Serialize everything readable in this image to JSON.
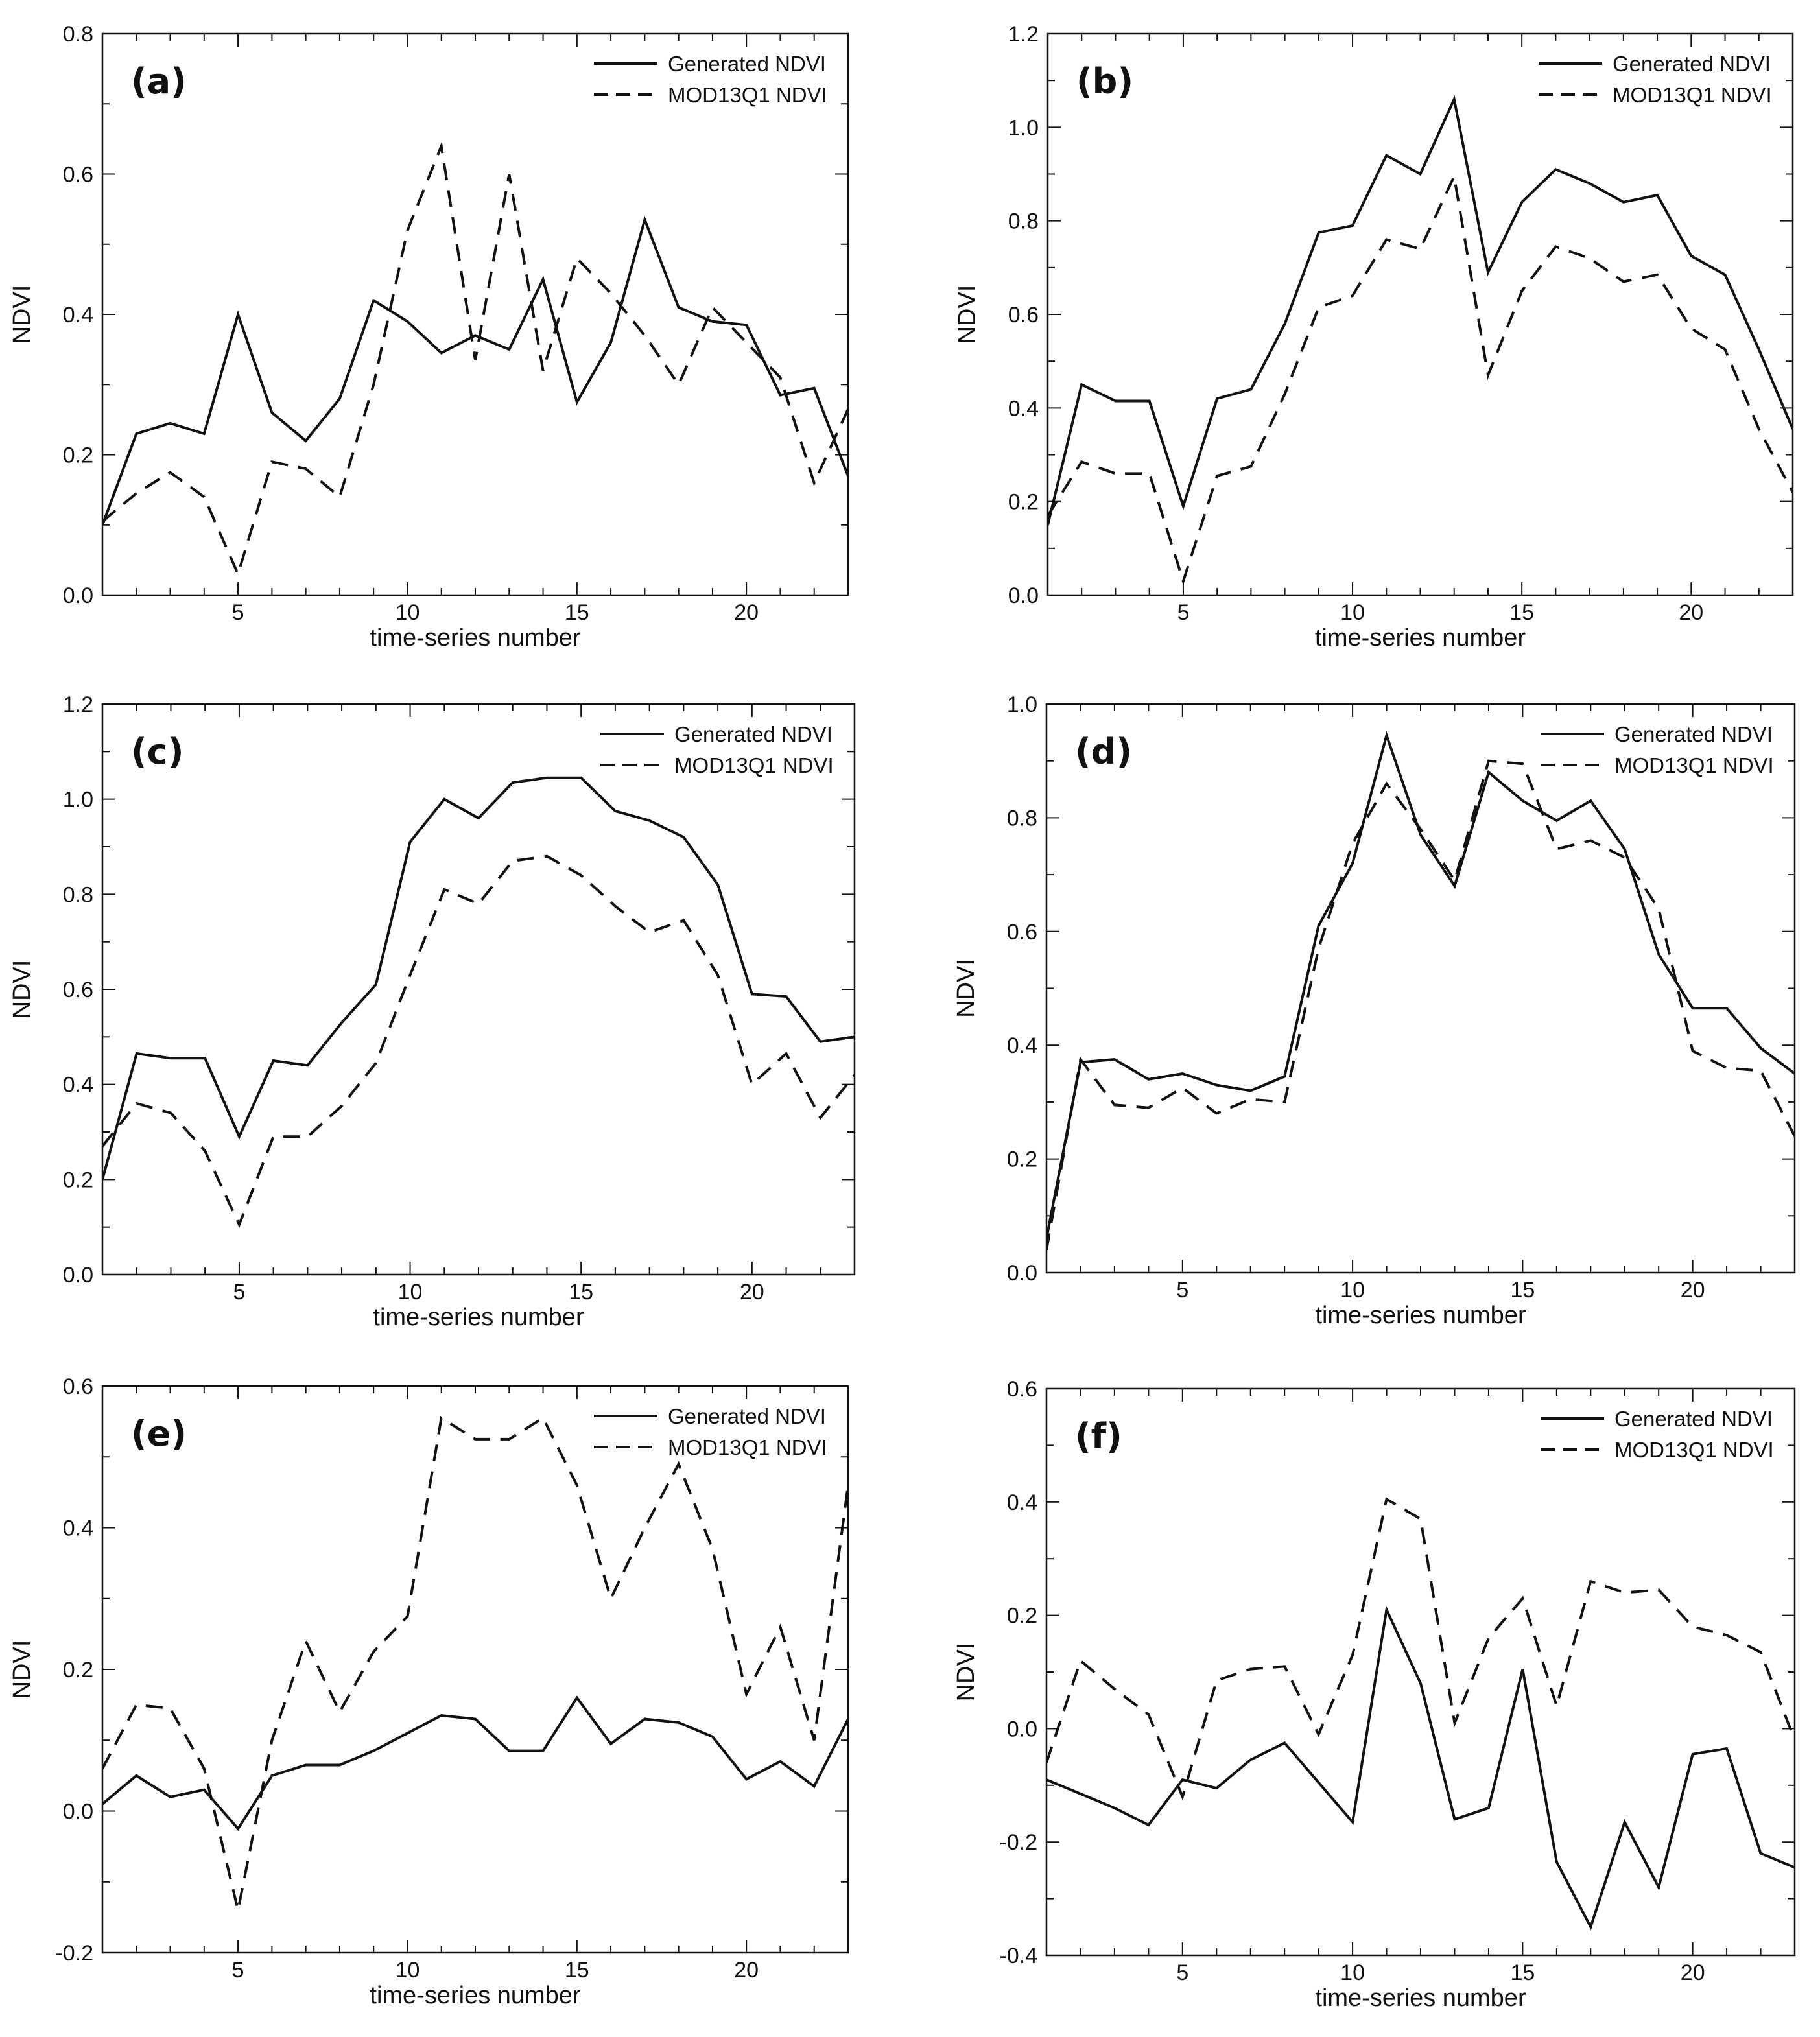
{
  "figure": {
    "xlabel": "time-series number",
    "ylabel": "NDVI",
    "legend": [
      "Generated NDVI",
      "MOD13Q1 NDVI"
    ]
  },
  "chart_data": [
    {
      "type": "line",
      "panel_label": "(a)",
      "title": "",
      "xlabel": "time-series number",
      "ylabel": "NDVI",
      "xlim": [
        1,
        23
      ],
      "ylim": [
        0.0,
        0.8
      ],
      "xticks": [
        5,
        10,
        15,
        20
      ],
      "yticks": [
        0.0,
        0.2,
        0.4,
        0.6,
        0.8
      ],
      "ytick_labels": [
        "0.0",
        "0.2",
        "0.4",
        "0.6",
        "0.8"
      ],
      "x": [
        1,
        2,
        3,
        4,
        5,
        6,
        7,
        8,
        9,
        10,
        11,
        12,
        13,
        14,
        15,
        16,
        17,
        18,
        19,
        20,
        21,
        22,
        23
      ],
      "legend_position": "top-right",
      "series": [
        {
          "name": "Generated NDVI",
          "style": "solid",
          "values": [
            0.1,
            0.23,
            0.245,
            0.23,
            0.4,
            0.26,
            0.22,
            0.28,
            0.42,
            0.39,
            0.345,
            0.37,
            0.35,
            0.45,
            0.275,
            0.36,
            0.535,
            0.41,
            0.39,
            0.385,
            0.285,
            0.295,
            0.17
          ]
        },
        {
          "name": "MOD13Q1 NDVI",
          "style": "dashed",
          "values": [
            0.105,
            0.145,
            0.175,
            0.14,
            0.03,
            0.19,
            0.18,
            0.14,
            0.3,
            0.52,
            0.64,
            0.335,
            0.6,
            0.32,
            0.48,
            0.43,
            0.37,
            0.3,
            0.41,
            0.36,
            0.31,
            0.16,
            0.265
          ]
        }
      ]
    },
    {
      "type": "line",
      "panel_label": "(b)",
      "title": "",
      "xlabel": "time-series number",
      "ylabel": "NDVI",
      "xlim": [
        1,
        23
      ],
      "ylim": [
        0.0,
        1.2
      ],
      "xticks": [
        5,
        10,
        15,
        20
      ],
      "yticks": [
        0.0,
        0.2,
        0.4,
        0.6,
        0.8,
        1.0,
        1.2
      ],
      "ytick_labels": [
        "0.0",
        "0.2",
        "0.4",
        "0.6",
        "0.8",
        "1.0",
        "1.2"
      ],
      "x": [
        1,
        2,
        3,
        4,
        5,
        6,
        7,
        8,
        9,
        10,
        11,
        12,
        13,
        14,
        15,
        16,
        17,
        18,
        19,
        20,
        21,
        22,
        23
      ],
      "legend_position": "top-right",
      "series": [
        {
          "name": "Generated NDVI",
          "style": "solid",
          "values": [
            0.15,
            0.45,
            0.415,
            0.415,
            0.19,
            0.42,
            0.44,
            0.58,
            0.775,
            0.79,
            0.94,
            0.9,
            1.06,
            0.69,
            0.84,
            0.91,
            0.88,
            0.84,
            0.855,
            0.725,
            0.685,
            0.525,
            0.355
          ]
        },
        {
          "name": "MOD13Q1 NDVI",
          "style": "dashed",
          "values": [
            0.17,
            0.285,
            0.26,
            0.26,
            0.03,
            0.255,
            0.275,
            0.43,
            0.615,
            0.64,
            0.76,
            0.74,
            0.895,
            0.47,
            0.65,
            0.745,
            0.72,
            0.67,
            0.685,
            0.57,
            0.525,
            0.355,
            0.22
          ]
        }
      ]
    },
    {
      "type": "line",
      "panel_label": "(c)",
      "title": "",
      "xlabel": "time-series number",
      "ylabel": "NDVI",
      "xlim": [
        1,
        23
      ],
      "ylim": [
        0.0,
        1.2
      ],
      "xticks": [
        5,
        10,
        15,
        20
      ],
      "yticks": [
        0.0,
        0.2,
        0.4,
        0.6,
        0.8,
        1.0,
        1.2
      ],
      "ytick_labels": [
        "0.0",
        "0.2",
        "0.4",
        "0.6",
        "0.8",
        "1.0",
        "1.2"
      ],
      "x": [
        1,
        2,
        3,
        4,
        5,
        6,
        7,
        8,
        9,
        10,
        11,
        12,
        13,
        14,
        15,
        16,
        17,
        18,
        19,
        20,
        21,
        22,
        23
      ],
      "legend_position": "top-right",
      "series": [
        {
          "name": "Generated NDVI",
          "style": "solid",
          "values": [
            0.2,
            0.465,
            0.455,
            0.455,
            0.29,
            0.45,
            0.44,
            0.53,
            0.61,
            0.91,
            1.0,
            0.96,
            1.035,
            1.045,
            1.045,
            0.975,
            0.955,
            0.92,
            0.82,
            0.59,
            0.585,
            0.49,
            0.5
          ]
        },
        {
          "name": "MOD13Q1 NDVI",
          "style": "dashed",
          "values": [
            0.27,
            0.36,
            0.34,
            0.26,
            0.105,
            0.29,
            0.29,
            0.355,
            0.445,
            0.63,
            0.81,
            0.78,
            0.87,
            0.88,
            0.84,
            0.775,
            0.72,
            0.745,
            0.63,
            0.4,
            0.465,
            0.33,
            0.42
          ]
        }
      ]
    },
    {
      "type": "line",
      "panel_label": "(d)",
      "title": "",
      "xlabel": "time-series number",
      "ylabel": "NDVI",
      "xlim": [
        1,
        23
      ],
      "ylim": [
        0.0,
        1.0
      ],
      "xticks": [
        5,
        10,
        15,
        20
      ],
      "yticks": [
        0.0,
        0.2,
        0.4,
        0.6,
        0.8,
        1.0
      ],
      "ytick_labels": [
        "0.0",
        "0.2",
        "0.4",
        "0.6",
        "0.8",
        "1.0"
      ],
      "x": [
        1,
        2,
        3,
        4,
        5,
        6,
        7,
        8,
        9,
        10,
        11,
        12,
        13,
        14,
        15,
        16,
        17,
        18,
        19,
        20,
        21,
        22,
        23
      ],
      "legend_position": "top-right",
      "series": [
        {
          "name": "Generated NDVI",
          "style": "solid",
          "values": [
            0.06,
            0.37,
            0.375,
            0.34,
            0.35,
            0.33,
            0.32,
            0.345,
            0.61,
            0.72,
            0.945,
            0.77,
            0.68,
            0.88,
            0.83,
            0.795,
            0.83,
            0.745,
            0.56,
            0.465,
            0.465,
            0.395,
            0.35
          ]
        },
        {
          "name": "MOD13Q1 NDVI",
          "style": "dashed",
          "values": [
            0.04,
            0.375,
            0.295,
            0.29,
            0.325,
            0.28,
            0.305,
            0.3,
            0.57,
            0.755,
            0.86,
            0.78,
            0.69,
            0.9,
            0.895,
            0.745,
            0.76,
            0.73,
            0.64,
            0.39,
            0.36,
            0.355,
            0.24
          ]
        }
      ]
    },
    {
      "type": "line",
      "panel_label": "(e)",
      "title": "",
      "xlabel": "time-series number",
      "ylabel": "NDVI",
      "xlim": [
        1,
        23
      ],
      "ylim": [
        -0.2,
        0.6
      ],
      "xticks": [
        5,
        10,
        15,
        20
      ],
      "yticks": [
        -0.2,
        0.0,
        0.2,
        0.4,
        0.6
      ],
      "ytick_labels": [
        "-0.2",
        "0.0",
        "0.2",
        "0.4",
        "0.6"
      ],
      "x": [
        1,
        2,
        3,
        4,
        5,
        6,
        7,
        8,
        9,
        10,
        11,
        12,
        13,
        14,
        15,
        16,
        17,
        18,
        19,
        20,
        21,
        22,
        23
      ],
      "legend_position": "top-right",
      "series": [
        {
          "name": "Generated NDVI",
          "style": "solid",
          "values": [
            0.01,
            0.05,
            0.02,
            0.03,
            -0.025,
            0.05,
            0.065,
            0.065,
            0.085,
            0.11,
            0.135,
            0.13,
            0.085,
            0.085,
            0.16,
            0.095,
            0.13,
            0.125,
            0.105,
            0.045,
            0.07,
            0.035,
            0.13
          ]
        },
        {
          "name": "MOD13Q1 NDVI",
          "style": "dashed",
          "values": [
            0.06,
            0.15,
            0.145,
            0.06,
            -0.14,
            0.1,
            0.24,
            0.14,
            0.225,
            0.275,
            0.555,
            0.525,
            0.525,
            0.555,
            0.46,
            0.3,
            0.4,
            0.49,
            0.37,
            0.165,
            0.26,
            0.1,
            0.46
          ]
        }
      ]
    },
    {
      "type": "line",
      "panel_label": "(f)",
      "title": "",
      "xlabel": "time-series number",
      "ylabel": "NDVI",
      "xlim": [
        1,
        23
      ],
      "ylim": [
        -0.4,
        0.6
      ],
      "xticks": [
        5,
        10,
        15,
        20
      ],
      "yticks": [
        -0.4,
        -0.2,
        0.0,
        0.2,
        0.4,
        0.6
      ],
      "ytick_labels": [
        "-0.4",
        "-0.2",
        "0.0",
        "0.2",
        "0.4",
        "0.6"
      ],
      "x": [
        1,
        2,
        3,
        4,
        5,
        6,
        7,
        8,
        9,
        10,
        11,
        12,
        13,
        14,
        15,
        16,
        17,
        18,
        19,
        20,
        21,
        22,
        23
      ],
      "legend_position": "top-right",
      "series": [
        {
          "name": "Generated NDVI",
          "style": "solid",
          "values": [
            -0.09,
            -0.115,
            -0.14,
            -0.17,
            -0.09,
            -0.105,
            -0.055,
            -0.025,
            -0.095,
            -0.165,
            0.21,
            0.08,
            -0.16,
            -0.14,
            0.105,
            -0.235,
            -0.35,
            -0.165,
            -0.28,
            -0.045,
            -0.035,
            -0.22,
            -0.245
          ]
        },
        {
          "name": "MOD13Q1 NDVI",
          "style": "dashed",
          "values": [
            -0.06,
            0.12,
            0.07,
            0.025,
            -0.12,
            0.085,
            0.105,
            0.11,
            -0.01,
            0.13,
            0.405,
            0.37,
            0.01,
            0.16,
            0.23,
            0.04,
            0.26,
            0.24,
            0.245,
            0.18,
            0.165,
            0.135,
            -0.02
          ]
        }
      ]
    }
  ]
}
